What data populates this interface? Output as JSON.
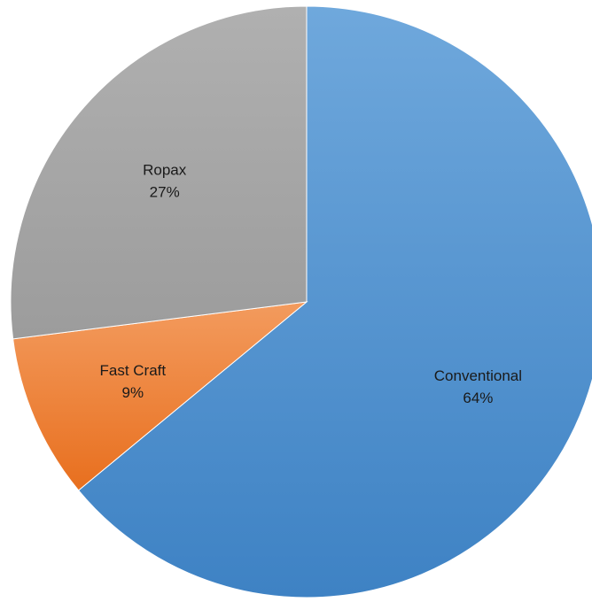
{
  "chart_data": {
    "type": "pie",
    "title": "",
    "legend": "none",
    "start_angle_deg": 0,
    "direction": "clockwise",
    "slices": [
      {
        "label": "Conventional",
        "value": 64,
        "percent_label": "64%",
        "color_top": "#6fa8dc",
        "color_bottom": "#3e82c4"
      },
      {
        "label": "Fast Craft",
        "value": 9,
        "percent_label": "9%",
        "color_top": "#f39b5e",
        "color_bottom": "#e86f1e"
      },
      {
        "label": "Ropax",
        "value": 27,
        "percent_label": "27%",
        "color_top": "#b0b0b0",
        "color_bottom": "#9c9c9c"
      }
    ]
  }
}
